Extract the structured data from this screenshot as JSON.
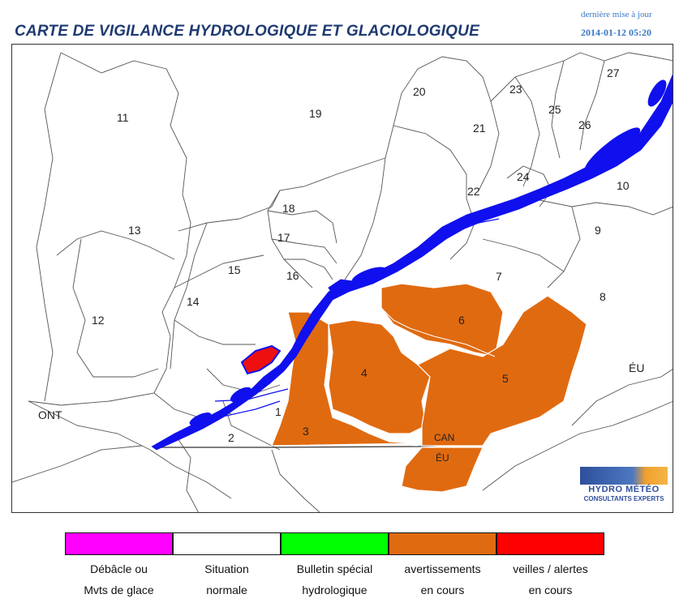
{
  "header": {
    "title": "CARTE DE VIGILANCE HYDROLOGIQUE ET GLACIOLOGIQUE",
    "updated_label": "dernière mise à jour",
    "updated_time": "2014-01-12 05:20"
  },
  "map": {
    "zones": [
      "1",
      "2",
      "3",
      "4",
      "5",
      "6",
      "7",
      "8",
      "9",
      "10",
      "11",
      "12",
      "13",
      "14",
      "15",
      "16",
      "17",
      "18",
      "19",
      "20",
      "21",
      "22",
      "23",
      "24",
      "25",
      "26",
      "27"
    ],
    "zone_status": {
      "3": "avertissements en cours",
      "4": "avertissements en cours",
      "5": "avertissements en cours",
      "6": "avertissements en cours",
      "15": "veilles / alertes en cours"
    },
    "region_labels": {
      "ont": "ONT",
      "eu_east": "ÉU"
    },
    "border_labels": {
      "can": "CAN",
      "eu": "ÉU"
    },
    "colors": {
      "water": "#1010ee",
      "warning": "#e06a10",
      "alert": "#ee1010",
      "boundary": "#555555"
    }
  },
  "logo": {
    "name": "HYDRO MÉTÉO",
    "subtitle": "CONSULTANTS EXPERTS"
  },
  "legend": [
    {
      "color": "#ff00ff",
      "line1": "Débâcle ou",
      "line2": "Mvts de glace"
    },
    {
      "color": "#ffffff",
      "line1": "Situation",
      "line2": "normale"
    },
    {
      "color": "#00ff00",
      "line1": "Bulletin spécial",
      "line2": "hydrologique"
    },
    {
      "color": "#e06a10",
      "line1": "avertissements",
      "line2": "en cours"
    },
    {
      "color": "#ff0000",
      "line1": "veilles / alertes",
      "line2": "en cours"
    }
  ]
}
